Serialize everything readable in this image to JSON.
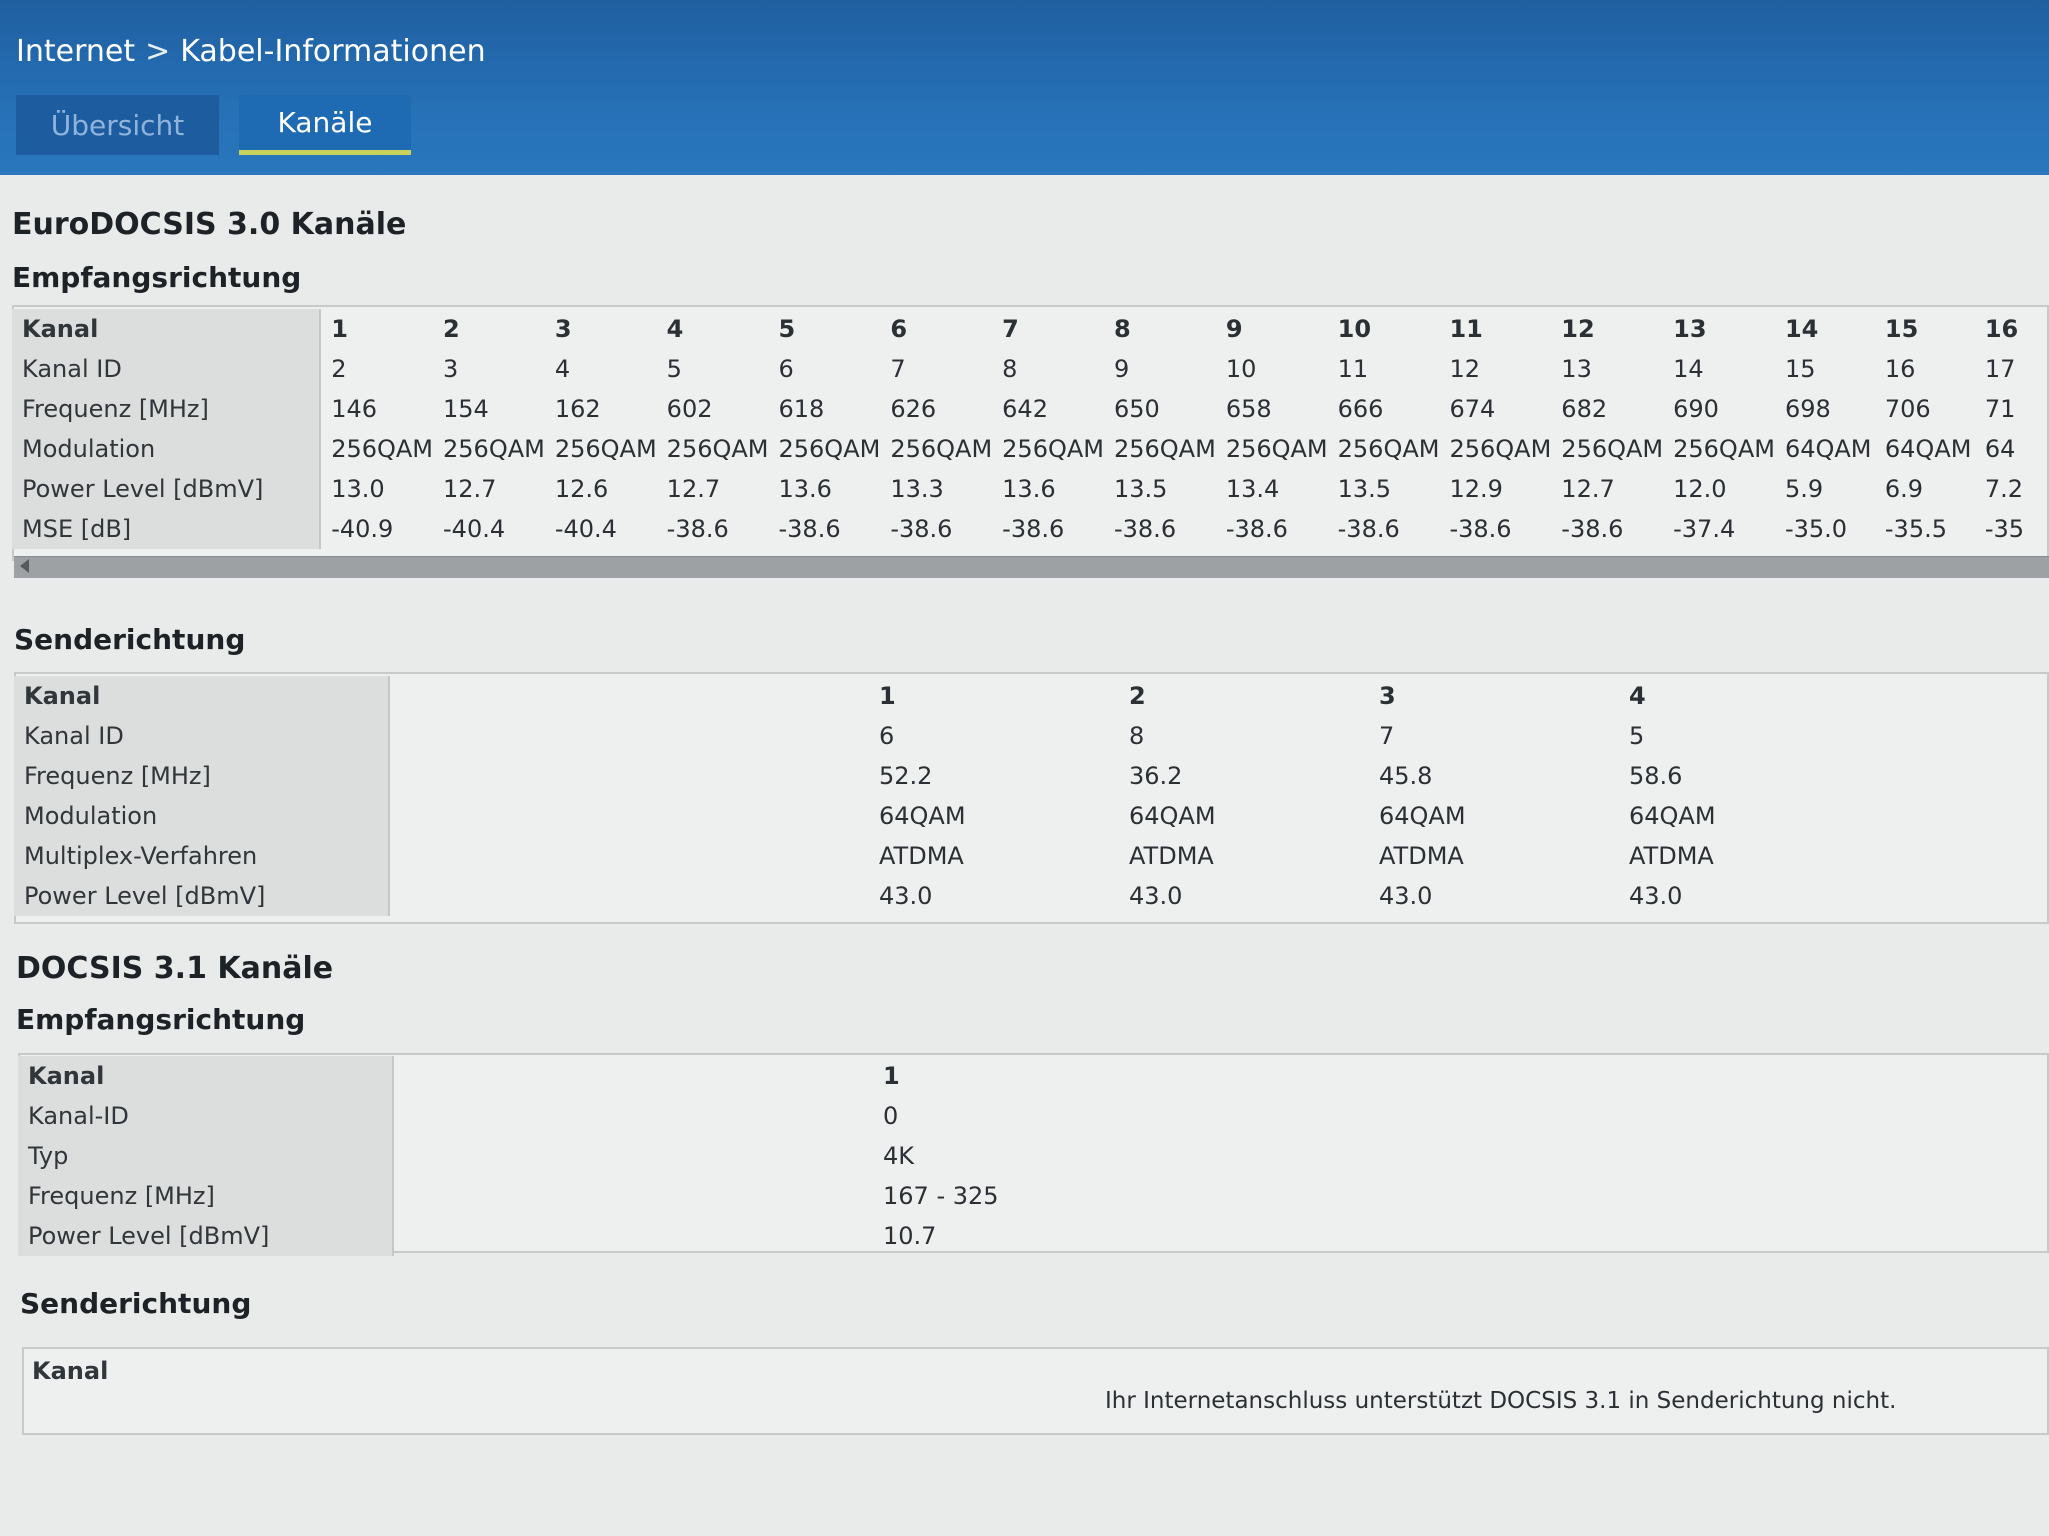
{
  "breadcrumb": {
    "root": "Internet",
    "separator": ">",
    "current": "Kabel-Informationen"
  },
  "tabs": [
    {
      "label": "Übersicht"
    },
    {
      "label": "Kanäle"
    }
  ],
  "docsis30": {
    "title": "EuroDOCSIS 3.0 Kanäle",
    "downstream": {
      "title": "Empfangsrichtung",
      "row_labels": [
        "Kanal",
        "Kanal ID",
        "Frequenz [MHz]",
        "Modulation",
        "Power Level [dBmV]",
        "MSE [dB]"
      ],
      "channels": [
        [
          "1",
          "2",
          "146",
          "256QAM",
          "13.0",
          "-40.9"
        ],
        [
          "2",
          "3",
          "154",
          "256QAM",
          "12.7",
          "-40.4"
        ],
        [
          "3",
          "4",
          "162",
          "256QAM",
          "12.6",
          "-40.4"
        ],
        [
          "4",
          "5",
          "602",
          "256QAM",
          "12.7",
          "-38.6"
        ],
        [
          "5",
          "6",
          "618",
          "256QAM",
          "13.6",
          "-38.6"
        ],
        [
          "6",
          "7",
          "626",
          "256QAM",
          "13.3",
          "-38.6"
        ],
        [
          "7",
          "8",
          "642",
          "256QAM",
          "13.6",
          "-38.6"
        ],
        [
          "8",
          "9",
          "650",
          "256QAM",
          "13.5",
          "-38.6"
        ],
        [
          "9",
          "10",
          "658",
          "256QAM",
          "13.4",
          "-38.6"
        ],
        [
          "10",
          "11",
          "666",
          "256QAM",
          "13.5",
          "-38.6"
        ],
        [
          "11",
          "12",
          "674",
          "256QAM",
          "12.9",
          "-38.6"
        ],
        [
          "12",
          "13",
          "682",
          "256QAM",
          "12.7",
          "-38.6"
        ],
        [
          "13",
          "14",
          "690",
          "256QAM",
          "12.0",
          "-37.4"
        ],
        [
          "14",
          "15",
          "698",
          "64QAM",
          "5.9",
          "-35.0"
        ],
        [
          "15",
          "16",
          "706",
          "64QAM",
          "6.9",
          "-35.5"
        ],
        [
          "16",
          "17",
          "71",
          "64",
          "7.2",
          "-35"
        ]
      ]
    },
    "upstream": {
      "title": "Senderichtung",
      "row_labels": [
        "Kanal",
        "Kanal ID",
        "Frequenz [MHz]",
        "Modulation",
        "Multiplex-Verfahren",
        "Power Level [dBmV]"
      ],
      "channels": [
        [
          "1",
          "6",
          "52.2",
          "64QAM",
          "ATDMA",
          "43.0"
        ],
        [
          "2",
          "8",
          "36.2",
          "64QAM",
          "ATDMA",
          "43.0"
        ],
        [
          "3",
          "7",
          "45.8",
          "64QAM",
          "ATDMA",
          "43.0"
        ],
        [
          "4",
          "5",
          "58.6",
          "64QAM",
          "ATDMA",
          "43.0"
        ]
      ]
    }
  },
  "docsis31": {
    "title": "DOCSIS 3.1 Kanäle",
    "downstream": {
      "title": "Empfangsrichtung",
      "row_labels": [
        "Kanal",
        "Kanal-ID",
        "Typ",
        "Frequenz [MHz]",
        "Power Level [dBmV]"
      ],
      "channels": [
        [
          "1",
          "0",
          "4K",
          "167 - 325",
          "10.7"
        ]
      ]
    },
    "upstream": {
      "title": "Senderichtung",
      "row_labels": [
        "Kanal"
      ],
      "message": "Ihr Internetanschluss unterstützt DOCSIS 3.1 in Senderichtung nicht."
    }
  }
}
